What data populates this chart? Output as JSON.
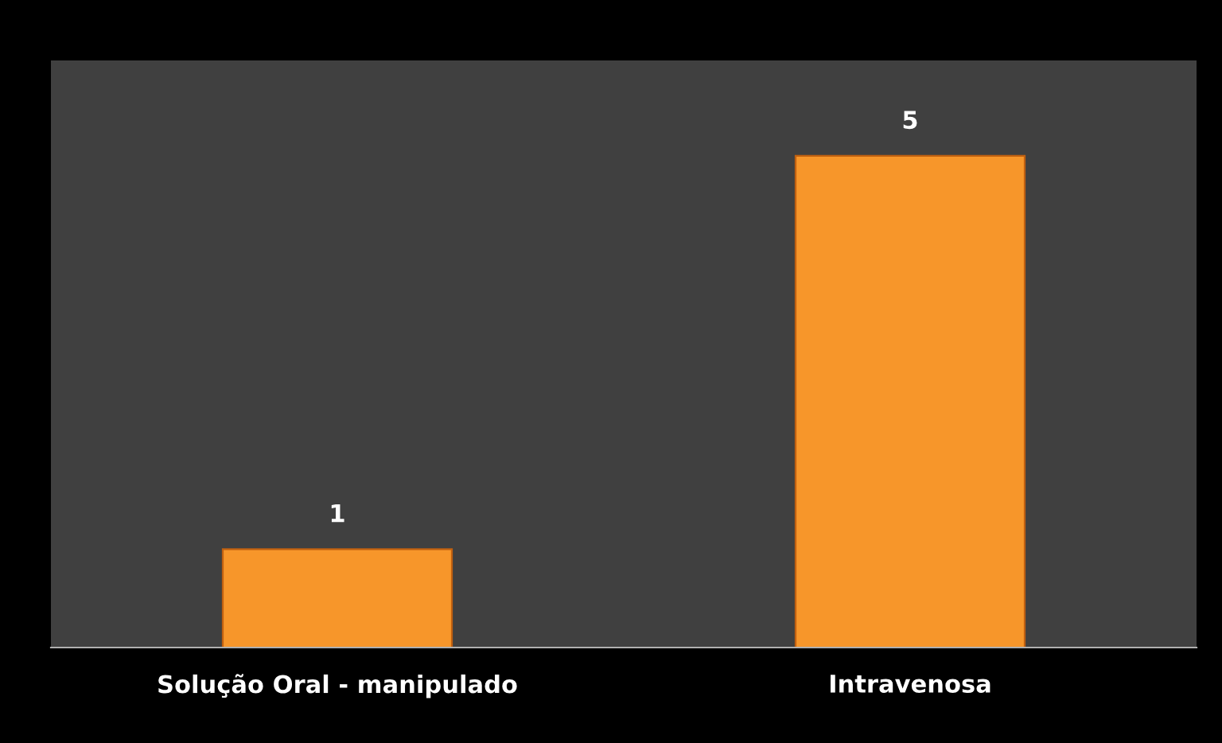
{
  "chart_data": {
    "type": "bar",
    "categories": [
      "Solução Oral - manipulado",
      "Intravenosa"
    ],
    "values": [
      1,
      5
    ],
    "color": "#f7962a",
    "data_labels": true,
    "grid": false,
    "legend": false,
    "tick_labels": "x"
  }
}
